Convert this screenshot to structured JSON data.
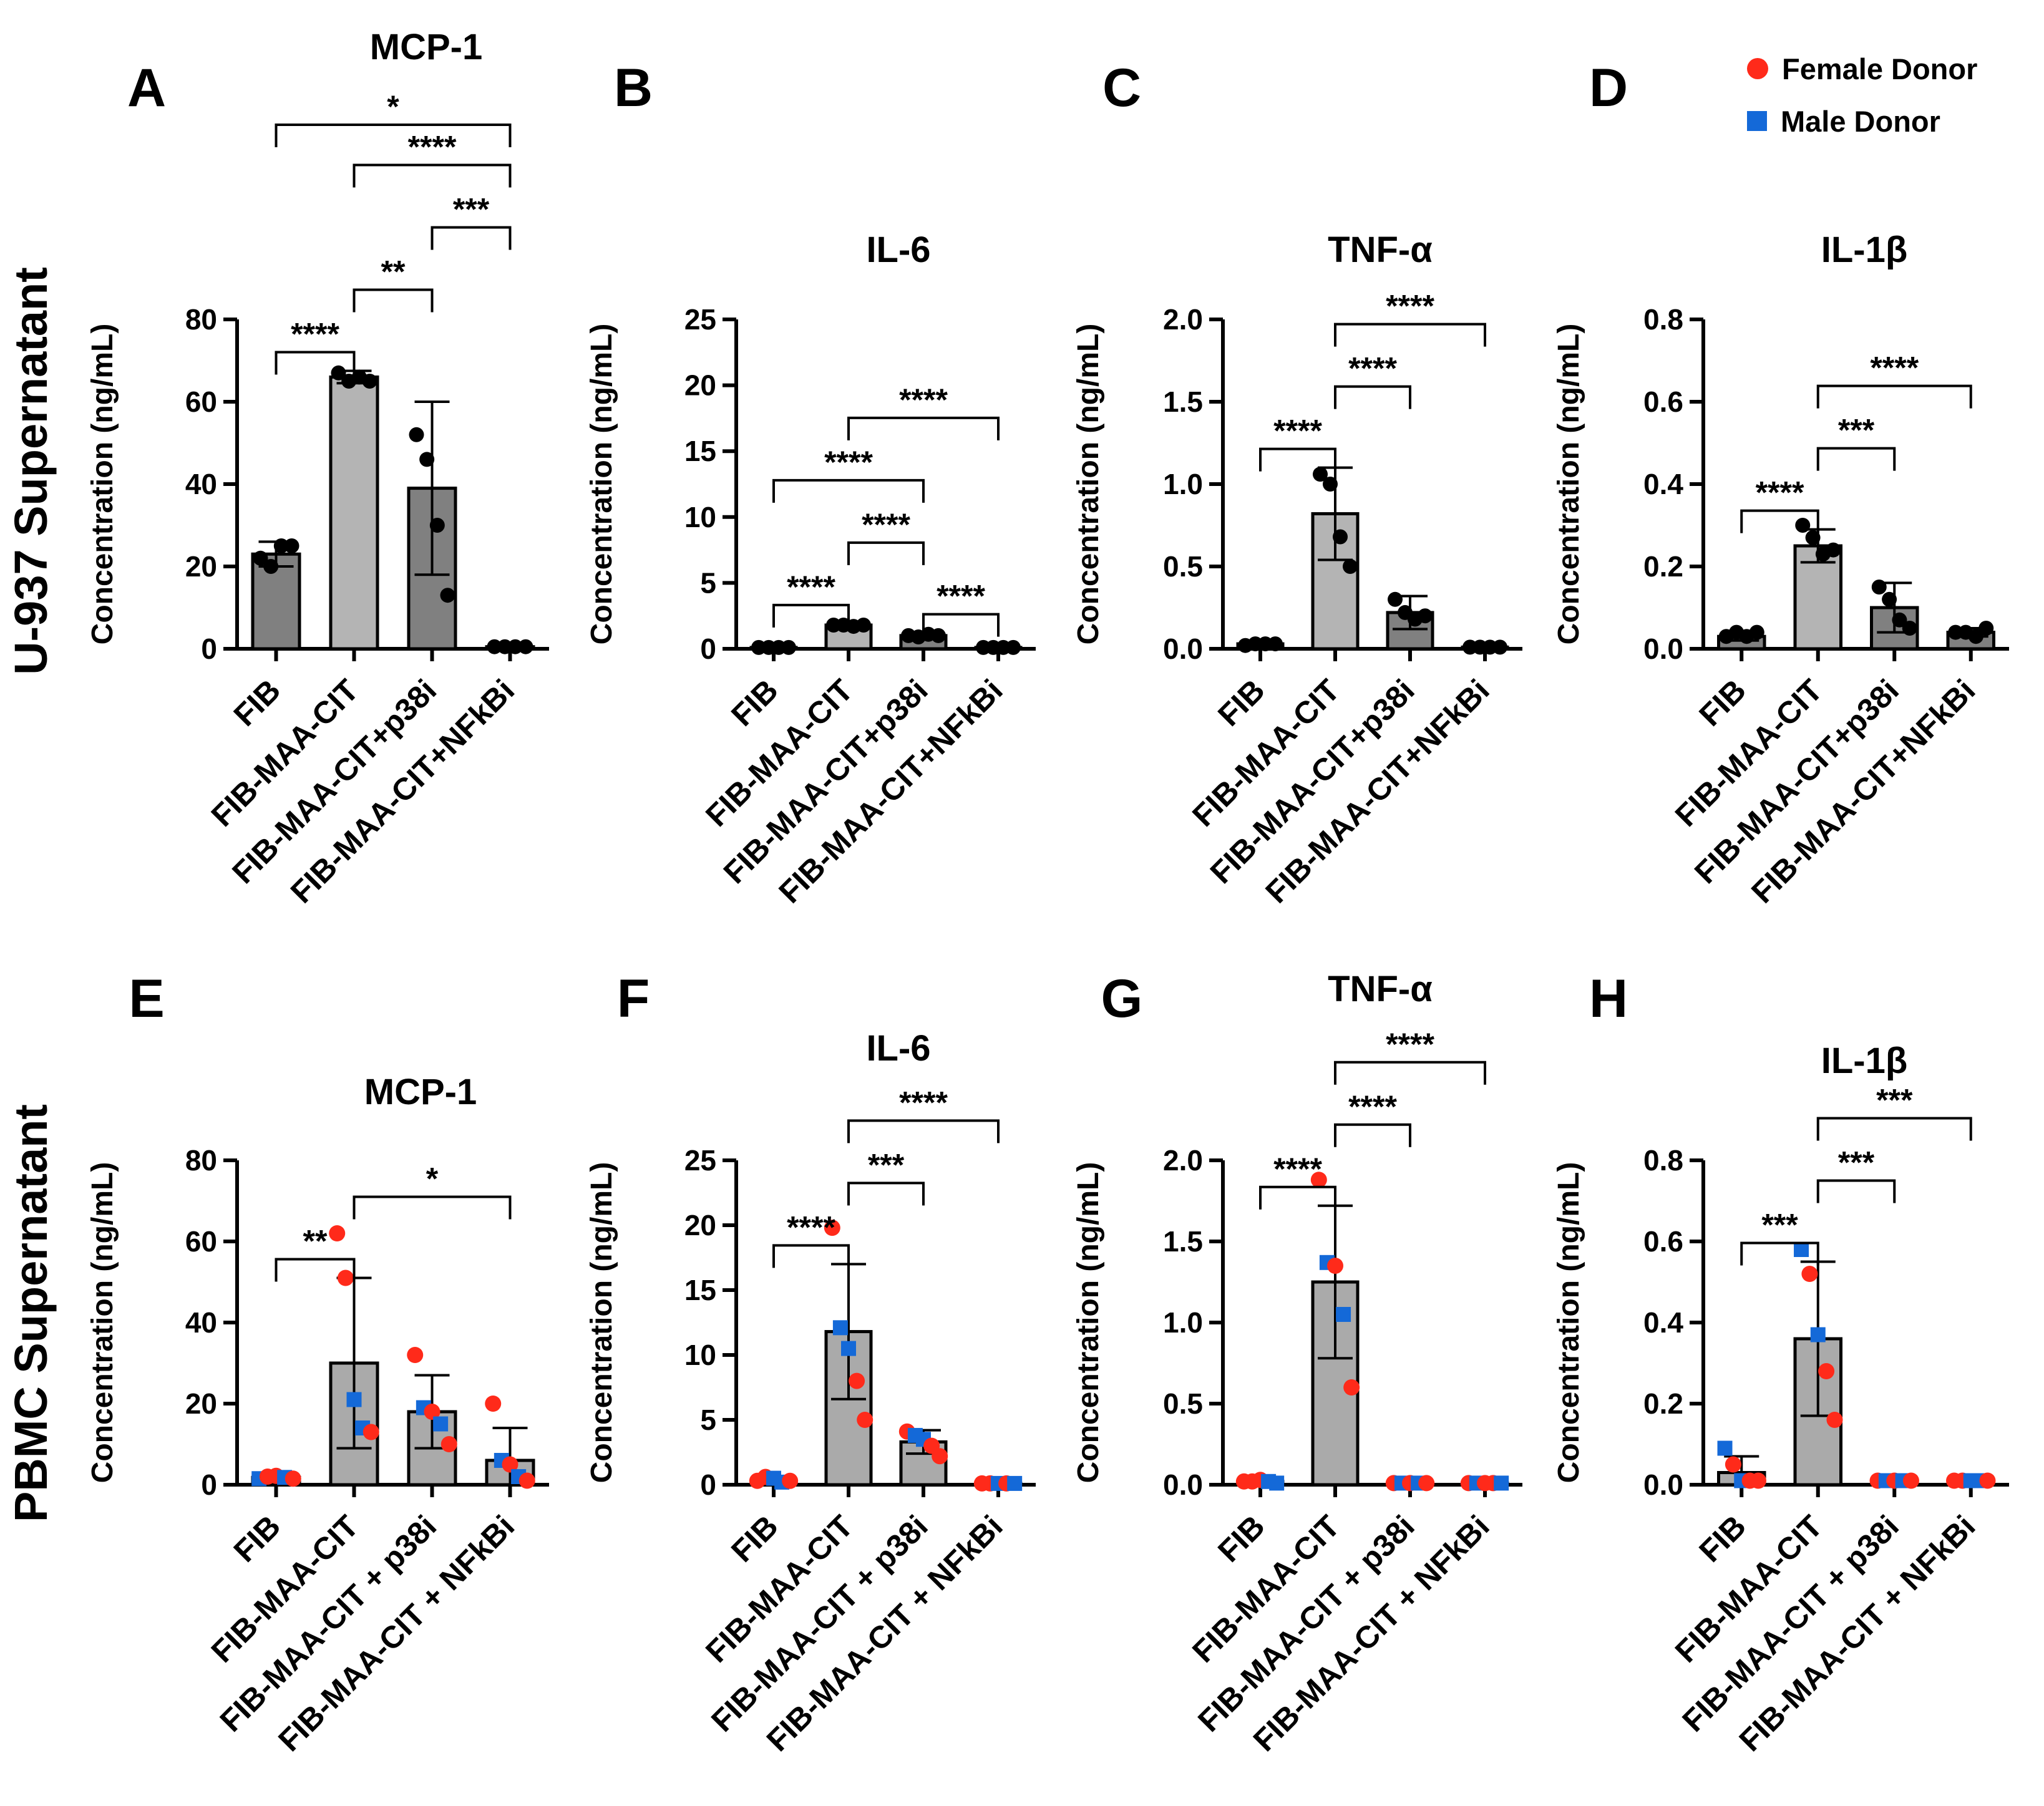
{
  "row_labels": [
    "U-937 Supernatant",
    "PBMC Supernatant"
  ],
  "legend": [
    {
      "label": "Female Donor",
      "shape": "circle",
      "color": "#ff2a1a"
    },
    {
      "label": "Male Donor",
      "shape": "square",
      "color": "#1469d8"
    }
  ],
  "colors": {
    "bar_dark": "#808080",
    "bar_light": "#b4b4b4",
    "bar_pbmc": "#aaaaaa",
    "points_u937": "#000000"
  },
  "chart_data": [
    {
      "panel": "A",
      "type": "bar",
      "title": "MCP-1",
      "ylabel": "Concentration (ng/mL)",
      "ylim": [
        0,
        80
      ],
      "yticks": [
        0,
        20,
        40,
        60,
        80
      ],
      "categories": [
        "FIB",
        "FIB-MAA-CIT",
        "FIB-MAA-CIT+p38i",
        "FIB-MAA-CIT+NFkBi"
      ],
      "values": [
        23,
        66,
        39,
        0.5
      ],
      "sd": [
        3,
        1.5,
        21,
        0.3
      ],
      "points": [
        [
          22,
          20,
          25,
          25
        ],
        [
          67,
          65,
          66,
          65
        ],
        [
          52,
          46,
          30,
          13
        ],
        [
          0.5,
          0.5,
          0.5,
          0.5
        ]
      ],
      "comparisons": [
        {
          "from": 0,
          "to": 1,
          "label": "****"
        },
        {
          "from": 1,
          "to": 2,
          "label": "**"
        },
        {
          "from": 2,
          "to": 3,
          "label": "***"
        },
        {
          "from": 1,
          "to": 3,
          "label": "****"
        },
        {
          "from": 0,
          "to": 3,
          "label": "*"
        }
      ]
    },
    {
      "panel": "B",
      "type": "bar",
      "title": "IL-6",
      "ylabel": "Concentration (ng/mL)",
      "ylim": [
        0,
        25
      ],
      "yticks": [
        0,
        5,
        10,
        15,
        20,
        25
      ],
      "categories": [
        "FIB",
        "FIB-MAA-CIT",
        "FIB-MAA-CIT+p38i",
        "FIB-MAA-CIT+NFkBi"
      ],
      "values": [
        0.1,
        1.8,
        1.0,
        0.1
      ],
      "sd": [
        0.05,
        0.1,
        0.2,
        0.05
      ],
      "points": [
        [
          0.1,
          0.1,
          0.1,
          0.1
        ],
        [
          1.8,
          1.8,
          1.7,
          1.8
        ],
        [
          1.0,
          0.9,
          1.1,
          1.0
        ],
        [
          0.1,
          0.1,
          0.1,
          0.1
        ]
      ],
      "comparisons": [
        {
          "from": 0,
          "to": 1,
          "label": "****"
        },
        {
          "from": 2,
          "to": 3,
          "label": "****"
        },
        {
          "from": 1,
          "to": 2,
          "label": "****"
        },
        {
          "from": 0,
          "to": 2,
          "label": "****"
        },
        {
          "from": 1,
          "to": 3,
          "label": "****"
        }
      ]
    },
    {
      "panel": "C",
      "type": "bar",
      "title": "TNF-α",
      "ylabel": "Concentration (ng/mL)",
      "ylim": [
        0,
        2.0
      ],
      "yticks": [
        0.0,
        0.5,
        1.0,
        1.5,
        2.0
      ],
      "tick_decimals": 1,
      "categories": [
        "FIB",
        "FIB-MAA-CIT",
        "FIB-MAA-CIT+p38i",
        "FIB-MAA-CIT+NFkBi"
      ],
      "values": [
        0.03,
        0.82,
        0.22,
        0.01
      ],
      "sd": [
        0.01,
        0.28,
        0.1,
        0.005
      ],
      "points": [
        [
          0.02,
          0.03,
          0.03,
          0.03
        ],
        [
          1.06,
          1.0,
          0.68,
          0.5
        ],
        [
          0.3,
          0.22,
          0.18,
          0.2
        ],
        [
          0.01,
          0.01,
          0.01,
          0.01
        ]
      ],
      "comparisons": [
        {
          "from": 0,
          "to": 1,
          "label": "****"
        },
        {
          "from": 1,
          "to": 3,
          "label": "****"
        },
        {
          "from": 1,
          "to": 2,
          "label": "****"
        }
      ]
    },
    {
      "panel": "D",
      "type": "bar",
      "title": "IL-1β",
      "ylabel": "Concentration (ng/mL)",
      "ylim": [
        0,
        0.8
      ],
      "yticks": [
        0.0,
        0.2,
        0.4,
        0.6,
        0.8
      ],
      "tick_decimals": 1,
      "categories": [
        "FIB",
        "FIB-MAA-CIT",
        "FIB-MAA-CIT+p38i",
        "FIB-MAA-CIT+NFkBi"
      ],
      "values": [
        0.03,
        0.25,
        0.1,
        0.04
      ],
      "sd": [
        0.01,
        0.04,
        0.06,
        0.01
      ],
      "points": [
        [
          0.03,
          0.04,
          0.03,
          0.04
        ],
        [
          0.3,
          0.27,
          0.23,
          0.24
        ],
        [
          0.15,
          0.12,
          0.07,
          0.05
        ],
        [
          0.04,
          0.04,
          0.03,
          0.05
        ]
      ],
      "comparisons": [
        {
          "from": 0,
          "to": 1,
          "label": "****"
        },
        {
          "from": 1,
          "to": 3,
          "label": "****"
        },
        {
          "from": 1,
          "to": 2,
          "label": "***"
        }
      ]
    },
    {
      "panel": "E",
      "type": "bar",
      "title": "MCP-1",
      "ylabel": "Concentration (ng/mL)",
      "ylim": [
        0,
        80
      ],
      "yticks": [
        0,
        20,
        40,
        60,
        80
      ],
      "categories": [
        "FIB",
        "FIB-MAA-CIT",
        "FIB-MAA-CIT + p38i",
        "FIB-MAA-CIT + NFkBi"
      ],
      "values": [
        1.8,
        30,
        18,
        6
      ],
      "sd": [
        0.5,
        21,
        9,
        8
      ],
      "points": [
        [
          {
            "v": 1.5,
            "s": "m"
          },
          {
            "v": 2,
            "s": "f"
          },
          {
            "v": 2.2,
            "s": "f"
          },
          {
            "v": 1.8,
            "s": "m"
          },
          {
            "v": 1.5,
            "s": "f"
          }
        ],
        [
          {
            "v": 62,
            "s": "f"
          },
          {
            "v": 51,
            "s": "f"
          },
          {
            "v": 21,
            "s": "m"
          },
          {
            "v": 14,
            "s": "m"
          },
          {
            "v": 13,
            "s": "f"
          }
        ],
        [
          {
            "v": 32,
            "s": "f"
          },
          {
            "v": 19,
            "s": "m"
          },
          {
            "v": 18,
            "s": "f"
          },
          {
            "v": 15,
            "s": "m"
          },
          {
            "v": 10,
            "s": "f"
          }
        ],
        [
          {
            "v": 20,
            "s": "f"
          },
          {
            "v": 6,
            "s": "m"
          },
          {
            "v": 5,
            "s": "f"
          },
          {
            "v": 2,
            "s": "m"
          },
          {
            "v": 1,
            "s": "f"
          }
        ]
      ],
      "comparisons": [
        {
          "from": 0,
          "to": 1,
          "label": "**"
        },
        {
          "from": 1,
          "to": 3,
          "label": "*"
        }
      ]
    },
    {
      "panel": "F",
      "type": "bar",
      "title": "IL-6",
      "ylabel": "Concentration (ng/mL)",
      "ylim": [
        0,
        25
      ],
      "yticks": [
        0,
        5,
        10,
        15,
        20,
        25
      ],
      "categories": [
        "FIB",
        "FIB-MAA-CIT",
        "FIB-MAA-CIT + p38i",
        "FIB-MAA-CIT + NFkBi"
      ],
      "values": [
        0.3,
        11.8,
        3.3,
        0.1
      ],
      "sd": [
        0.2,
        5.2,
        0.9,
        0.05
      ],
      "points": [
        [
          {
            "v": 0.3,
            "s": "f"
          },
          {
            "v": 0.6,
            "s": "f"
          },
          {
            "v": 0.5,
            "s": "m"
          },
          {
            "v": 0.2,
            "s": "m"
          },
          {
            "v": 0.3,
            "s": "f"
          }
        ],
        [
          {
            "v": 19.8,
            "s": "f"
          },
          {
            "v": 12.1,
            "s": "m"
          },
          {
            "v": 10.5,
            "s": "m"
          },
          {
            "v": 8,
            "s": "f"
          },
          {
            "v": 5,
            "s": "f"
          }
        ],
        [
          {
            "v": 4.1,
            "s": "f"
          },
          {
            "v": 3.8,
            "s": "m"
          },
          {
            "v": 3.5,
            "s": "m"
          },
          {
            "v": 3.0,
            "s": "f"
          },
          {
            "v": 2.2,
            "s": "f"
          }
        ],
        [
          {
            "v": 0.1,
            "s": "f"
          },
          {
            "v": 0.1,
            "s": "f"
          },
          {
            "v": 0.1,
            "s": "m"
          },
          {
            "v": 0.1,
            "s": "f"
          },
          {
            "v": 0.1,
            "s": "m"
          }
        ]
      ],
      "comparisons": [
        {
          "from": 0,
          "to": 1,
          "label": "****"
        },
        {
          "from": 1,
          "to": 3,
          "label": "****"
        },
        {
          "from": 1,
          "to": 2,
          "label": "***"
        }
      ]
    },
    {
      "panel": "G",
      "type": "bar",
      "title": "TNF-α",
      "ylabel": "Concentration (ng/mL)",
      "ylim": [
        0,
        2.0
      ],
      "yticks": [
        0.0,
        0.5,
        1.0,
        1.5,
        2.0
      ],
      "tick_decimals": 1,
      "categories": [
        "FIB",
        "FIB-MAA-CIT",
        "FIB-MAA-CIT + p38i",
        "FIB-MAA-CIT + NFkBi"
      ],
      "values": [
        0.02,
        1.25,
        0.01,
        0.01
      ],
      "sd": [
        0.01,
        0.47,
        0.005,
        0.005
      ],
      "points": [
        [
          {
            "v": 0.02,
            "s": "f"
          },
          {
            "v": 0.02,
            "s": "f"
          },
          {
            "v": 0.03,
            "s": "f"
          },
          {
            "v": 0.02,
            "s": "m"
          },
          {
            "v": 0.01,
            "s": "m"
          }
        ],
        [
          {
            "v": 1.88,
            "s": "f"
          },
          {
            "v": 1.37,
            "s": "m"
          },
          {
            "v": 1.35,
            "s": "f"
          },
          {
            "v": 1.05,
            "s": "m"
          },
          {
            "v": 0.6,
            "s": "f"
          }
        ],
        [
          {
            "v": 0.01,
            "s": "f"
          },
          {
            "v": 0.01,
            "s": "m"
          },
          {
            "v": 0.01,
            "s": "f"
          },
          {
            "v": 0.01,
            "s": "m"
          },
          {
            "v": 0.01,
            "s": "f"
          }
        ],
        [
          {
            "v": 0.01,
            "s": "f"
          },
          {
            "v": 0.01,
            "s": "m"
          },
          {
            "v": 0.01,
            "s": "f"
          },
          {
            "v": 0.01,
            "s": "f"
          },
          {
            "v": 0.01,
            "s": "m"
          }
        ]
      ],
      "comparisons": [
        {
          "from": 0,
          "to": 1,
          "label": "****"
        },
        {
          "from": 1,
          "to": 3,
          "label": "****"
        },
        {
          "from": 1,
          "to": 2,
          "label": "****"
        }
      ]
    },
    {
      "panel": "H",
      "type": "bar",
      "title": "IL-1β",
      "ylabel": "Concentration (ng/mL)",
      "ylim": [
        0,
        0.8
      ],
      "yticks": [
        0.0,
        0.2,
        0.4,
        0.6,
        0.8
      ],
      "tick_decimals": 1,
      "categories": [
        "FIB",
        "FIB-MAA-CIT",
        "FIB-MAA-CIT + p38i",
        "FIB-MAA-CIT + NFkBi"
      ],
      "values": [
        0.03,
        0.36,
        0.01,
        0.01
      ],
      "sd": [
        0.04,
        0.19,
        0.005,
        0.005
      ],
      "points": [
        [
          {
            "v": 0.09,
            "s": "m"
          },
          {
            "v": 0.05,
            "s": "f"
          },
          {
            "v": 0.01,
            "s": "m"
          },
          {
            "v": 0.01,
            "s": "f"
          },
          {
            "v": 0.01,
            "s": "f"
          }
        ],
        [
          {
            "v": 0.58,
            "s": "m"
          },
          {
            "v": 0.52,
            "s": "f"
          },
          {
            "v": 0.37,
            "s": "m"
          },
          {
            "v": 0.28,
            "s": "f"
          },
          {
            "v": 0.16,
            "s": "f"
          }
        ],
        [
          {
            "v": 0.01,
            "s": "f"
          },
          {
            "v": 0.01,
            "s": "m"
          },
          {
            "v": 0.01,
            "s": "f"
          },
          {
            "v": 0.01,
            "s": "m"
          },
          {
            "v": 0.01,
            "s": "f"
          }
        ],
        [
          {
            "v": 0.01,
            "s": "f"
          },
          {
            "v": 0.01,
            "s": "f"
          },
          {
            "v": 0.01,
            "s": "m"
          },
          {
            "v": 0.01,
            "s": "m"
          },
          {
            "v": 0.01,
            "s": "f"
          }
        ]
      ],
      "comparisons": [
        {
          "from": 0,
          "to": 1,
          "label": "***"
        },
        {
          "from": 1,
          "to": 3,
          "label": "***"
        },
        {
          "from": 1,
          "to": 2,
          "label": "***"
        }
      ]
    }
  ]
}
